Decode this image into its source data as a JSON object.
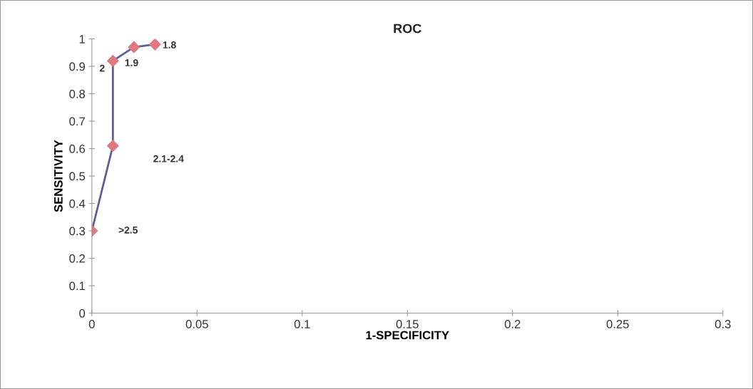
{
  "chart_data": {
    "type": "line",
    "title": "ROC",
    "xlabel": "1-SPECIFICITY",
    "ylabel": "SENSITIVITY",
    "x": [
      0,
      0.01,
      0.01,
      0.02,
      0.03
    ],
    "series": [
      {
        "color": "#5a5f9a",
        "colors": [
          "#e07880",
          "#e07880",
          "#e07880",
          "#e07880",
          "#e07880"
        ],
        "values": [
          0.3,
          0.61,
          0.92,
          0.97,
          0.98
        ]
      }
    ],
    "marker": "diamond",
    "line_style": "solid",
    "grid": false,
    "xlim": [
      0,
      0.3
    ],
    "xticks": [
      0,
      0.05,
      0.1,
      0.15,
      0.2,
      0.25,
      0.3
    ],
    "ylim": [
      0,
      1
    ],
    "yticks": [
      0,
      0.1,
      0.2,
      0.3,
      0.4,
      0.5,
      0.6,
      0.7,
      0.8,
      0.9,
      1
    ],
    "annotations": [
      ">2.5",
      "2.1-2.4",
      "2",
      "1.9",
      "1.8"
    ]
  }
}
